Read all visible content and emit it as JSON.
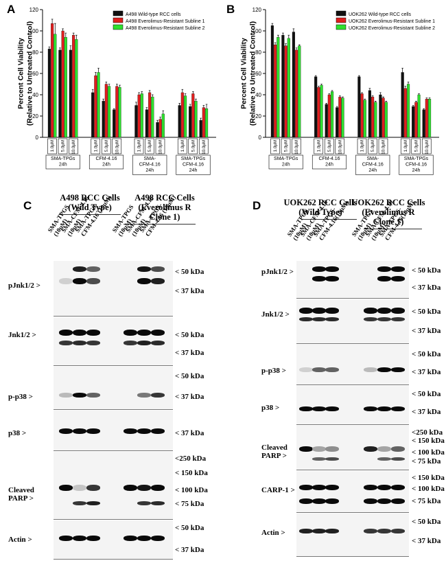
{
  "panel_a": {
    "letter": "A",
    "chart_data": {
      "type": "bar",
      "ylabel": "Percent Cell Viability\n(Relative to Untreated Control)",
      "ylim": [
        0,
        120
      ],
      "yticks": [
        0,
        20,
        40,
        60,
        80,
        100,
        120
      ],
      "grid": false,
      "legend_position": "top-right",
      "dose_labels": [
        "1.0μM",
        "5.0μM",
        "10.0μM"
      ],
      "groups": [
        "SMA-TPGs\n24h",
        "CFM-4.16\n24h",
        "SMA-\nCFM-4.16\n24h",
        "SMA-TPGs\nCFM-4.16\n24h"
      ],
      "series": [
        {
          "name": "A498 Wild-type RCC cells",
          "color": "#111111",
          "values": [
            [
              83,
              82,
              82
            ],
            [
              42,
              34,
              26
            ],
            [
              30,
              26,
              14
            ],
            [
              30,
              29,
              16
            ]
          ],
          "errors": [
            [
              2,
              2,
              4
            ],
            [
              3,
              2,
              1
            ],
            [
              3,
              2,
              2
            ],
            [
              2,
              2,
              2
            ]
          ]
        },
        {
          "name": "A498 Everolimus-Resistant Subline 1",
          "color": "#e01e1e",
          "values": [
            [
              107,
              100,
              96
            ],
            [
              58,
              50,
              48
            ],
            [
              40,
              42,
              17
            ],
            [
              42,
              41,
              28
            ]
          ],
          "errors": [
            [
              4,
              2,
              2
            ],
            [
              3,
              2,
              2
            ],
            [
              2,
              2,
              2
            ],
            [
              3,
              2,
              2
            ]
          ]
        },
        {
          "name": "A498 Everolimus-Resistant Subline 2",
          "color": "#2ee02e",
          "values": [
            [
              97,
              94,
              92
            ],
            [
              61,
              48,
              47
            ],
            [
              41,
              38,
              22
            ],
            [
              39,
              34,
              27
            ]
          ],
          "errors": [
            [
              10,
              4,
              4
            ],
            [
              4,
              2,
              2
            ],
            [
              2,
              2,
              3
            ],
            [
              2,
              2,
              4
            ]
          ]
        }
      ]
    }
  },
  "panel_b": {
    "letter": "B",
    "chart_data": {
      "type": "bar",
      "ylabel": "Percent Cell Viability\n(Relative to Untreated Control)",
      "ylim": [
        0,
        120
      ],
      "yticks": [
        0,
        20,
        40,
        60,
        80,
        100,
        120
      ],
      "grid": false,
      "legend_position": "top-right",
      "dose_labels": [
        "1.0μM",
        "5.0μM",
        "10.0μM"
      ],
      "groups": [
        "SMA-TPGs\n24h",
        "CFM-4.16\n24h",
        "SMA-\nCFM-4.16\n24h",
        "SMA-TPGs\nCFM-4.16\n24h"
      ],
      "series": [
        {
          "name": "UOK262 Wild-type RCC cells",
          "color": "#111111",
          "values": [
            [
              105,
              96,
              99
            ],
            [
              57,
              31,
              28
            ],
            [
              57,
              44,
              40
            ],
            [
              61,
              29,
              26
            ]
          ],
          "errors": [
            [
              2,
              2,
              3
            ],
            [
              1,
              1,
              1
            ],
            [
              1,
              2,
              2
            ],
            [
              4,
              1,
              1
            ]
          ]
        },
        {
          "name": "UOK262 Everolimus-Resistant Subline 1",
          "color": "#e01e1e",
          "values": [
            [
              87,
              86,
              82
            ],
            [
              47,
              40,
              38
            ],
            [
              41,
              38,
              37
            ],
            [
              46,
              33,
              36
            ]
          ],
          "errors": [
            [
              2,
              2,
              2
            ],
            [
              1,
              1,
              1
            ],
            [
              1,
              1,
              1
            ],
            [
              2,
              1,
              1
            ]
          ]
        },
        {
          "name": "UOK262 Everolimus-Resistant Subline 2",
          "color": "#2ee02e",
          "values": [
            [
              94,
              93,
              86
            ],
            [
              49,
              43,
              37
            ],
            [
              35,
              33,
              33
            ],
            [
              50,
              40,
              36
            ]
          ],
          "errors": [
            [
              2,
              3,
              1
            ],
            [
              1,
              1,
              1
            ],
            [
              1,
              1,
              1
            ],
            [
              2,
              1,
              1
            ]
          ]
        }
      ]
    }
  },
  "panel_c": {
    "letter": "C",
    "title_left": "A498 RCC Cells\n(Wild Type)",
    "title_right": "A498 RCC Cells\n(Everolimus R\nClone 1)",
    "lanes": [
      "SMA-TPGS\n(10μM)",
      "SMA-CFM-4.16\n(10μM)",
      "SMA-TPGS-\nCFM-4.16 (10μM)"
    ],
    "rows": [
      {
        "label": "pJnk1/2 >",
        "markers": [
          "< 50 kDa",
          "< 37 kDa"
        ]
      },
      {
        "label": "Jnk1/2 >",
        "markers": [
          "< 50 kDa",
          "< 37 kDa"
        ]
      },
      {
        "label": "p-p38 >",
        "markers": [
          "< 50 kDa",
          "< 37 kDa"
        ]
      },
      {
        "label": "p38 >",
        "markers": [
          "< 37 kDa"
        ]
      },
      {
        "label": "Cleaved\nPARP >",
        "markers": [
          "<250 kDa",
          "< 150 kDa",
          "< 100 kDa",
          "< 75 kDa"
        ]
      },
      {
        "label": "Actin >",
        "markers": [
          "< 50 kDa",
          "< 37 kDa"
        ]
      }
    ]
  },
  "panel_d": {
    "letter": "D",
    "title_left": "UOK262 RCC Cells\n(Wild Type)",
    "title_right": "UOK262 RCC Cells\n(Everolimus R\nClone 1)",
    "lanes": [
      "SMA-TPGS\n(10μM)",
      "SMA-CFM-4.16\n(10μM)",
      "SMA-TPGS-\nCFM-4.16(10μM)"
    ],
    "rows": [
      {
        "label": "pJnk1/2 >",
        "markers": [
          "< 50 kDa",
          "< 37 kDa"
        ]
      },
      {
        "label": "Jnk1/2 >",
        "markers": [
          "< 50 kDa",
          "< 37 kDa"
        ]
      },
      {
        "label": "p-p38 >",
        "markers": [
          "< 50 kDa",
          "< 37 kDa"
        ]
      },
      {
        "label": "p38 >",
        "markers": [
          "< 50 kDa",
          "< 37 kDa"
        ]
      },
      {
        "label": "Cleaved\nPARP >",
        "markers": [
          "<250 kDa",
          "< 150 kDa",
          "< 100 kDa",
          "< 75 kDa"
        ]
      },
      {
        "label": "CARP-1 >",
        "markers": [
          "< 150 kDa",
          "< 100 kDa",
          "< 75 kDa"
        ]
      },
      {
        "label": "Actin >",
        "markers": [
          "< 50 kDa",
          "< 37 kDa"
        ]
      }
    ]
  }
}
